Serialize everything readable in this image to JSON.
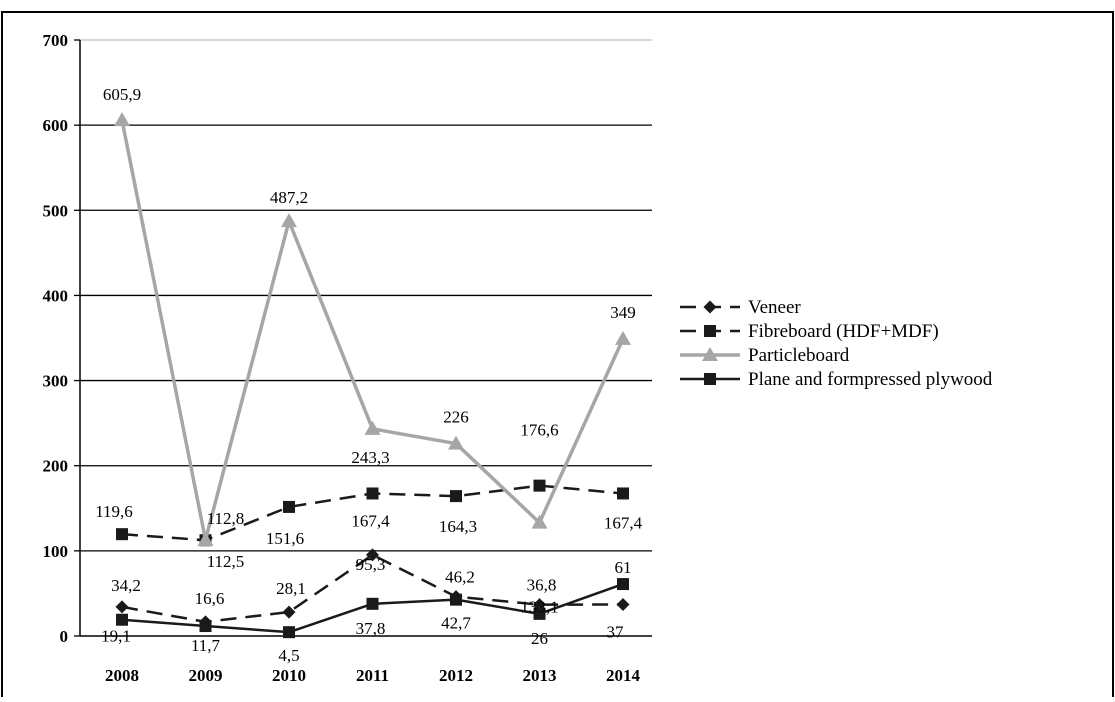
{
  "chart_data": {
    "type": "line",
    "categories": [
      "2008",
      "2009",
      "2010",
      "2011",
      "2012",
      "2013",
      "2014"
    ],
    "ylim": [
      0,
      700
    ],
    "yticks": [
      0,
      100,
      200,
      300,
      400,
      500,
      600,
      700
    ],
    "grid": true,
    "legend_position": "right",
    "series": [
      {
        "name": "Veneer",
        "values": [
          34.2,
          16.6,
          28.1,
          95.3,
          46.2,
          36.8,
          37
        ],
        "labels": [
          "34,2",
          "16,6",
          "28,1",
          "95,3",
          "46,2",
          "36,8",
          "37"
        ],
        "color": "#1a1a1a",
        "dash": "dashed",
        "marker": "diamond"
      },
      {
        "name": "Fibreboard (HDF+MDF)",
        "values": [
          119.6,
          112.5,
          151.6,
          167.4,
          164.3,
          176.6,
          167.4
        ],
        "labels": [
          "119,6",
          "112,5",
          "151,6",
          "167,4",
          "164,3",
          "176,6",
          "167,4"
        ],
        "color": "#1a1a1a",
        "dash": "dashed",
        "marker": "square"
      },
      {
        "name": "Particleboard",
        "values": [
          605.9,
          112.8,
          487.2,
          243.3,
          226,
          133.1,
          349
        ],
        "labels": [
          "605,9",
          "112,8",
          "487,2",
          "243,3",
          "226",
          "133,1",
          "349"
        ],
        "color": "#a6a6a6",
        "dash": "solid",
        "marker": "triangle"
      },
      {
        "name": "Plane and formpressed plywood",
        "values": [
          19.1,
          11.7,
          4.5,
          37.8,
          42.7,
          26,
          61
        ],
        "labels": [
          "19,1",
          "11,7",
          "4,5",
          "37,8",
          "42,7",
          "26",
          "61"
        ],
        "color": "#1a1a1a",
        "dash": "solid",
        "marker": "square"
      }
    ]
  }
}
